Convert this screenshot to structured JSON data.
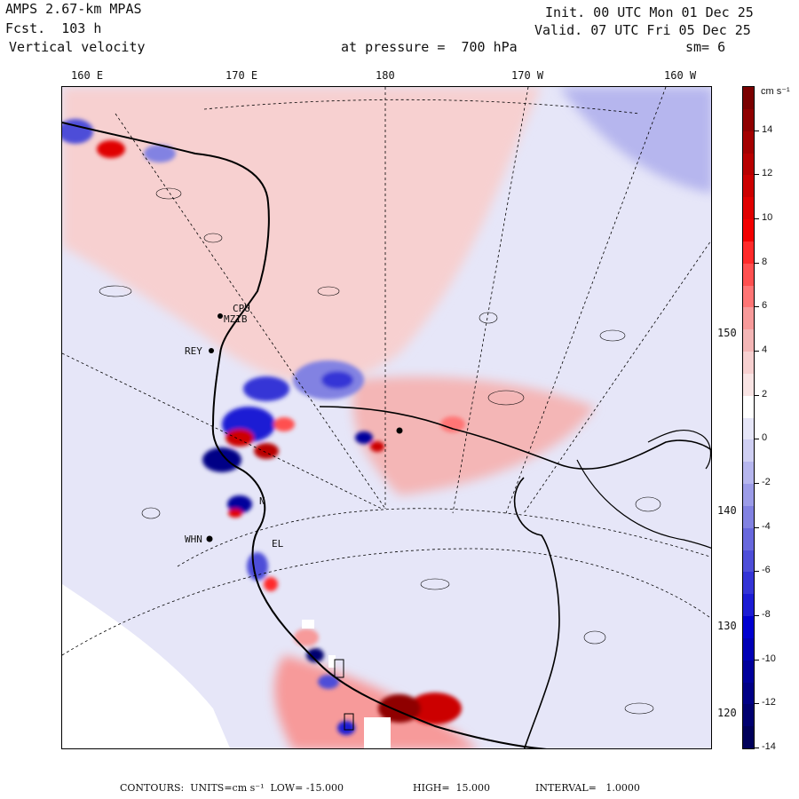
{
  "header": {
    "model": "AMPS 2.67-km MPAS",
    "forecast": "Fcst.  103 h",
    "field": "Vertical velocity",
    "init": "Init. 00 UTC Mon 01 Dec 25",
    "valid": "Valid. 07 UTC Fri 05 Dec 25",
    "level": "at pressure =  700 hPa",
    "smoothing": "sm= 6"
  },
  "top_ticks": [
    "160 E",
    "170 E",
    "180",
    "170 W",
    "160 W"
  ],
  "right_ticks": [
    "150 W",
    "140 W",
    "130 W",
    "120 W"
  ],
  "stations": [
    {
      "id": "st-mcm",
      "label": "MZIB"
    },
    {
      "id": "st-cpu",
      "label": "CPU"
    },
    {
      "id": "st-rey",
      "label": "REY"
    },
    {
      "id": "st-whn",
      "label": "WHN"
    },
    {
      "id": "st-n",
      "label": "N"
    },
    {
      "id": "st-el",
      "label": "EL"
    }
  ],
  "colorbar": {
    "units": "cm s⁻¹",
    "labels": [
      "14",
      "12",
      "10",
      "8",
      "6",
      "4",
      "2",
      "0",
      "-2",
      "-4",
      "-6",
      "-8",
      "-10",
      "-12",
      "-14"
    ],
    "colors": [
      "#7a0000",
      "#8f0000",
      "#a40000",
      "#b80000",
      "#cc0000",
      "#e00000",
      "#f20000",
      "#ff2a2a",
      "#ff5050",
      "#ff7575",
      "#f79a9a",
      "#f4b6b6",
      "#f7d0d0",
      "#f9e4e4",
      "#ffffff",
      "#e6e6f8",
      "#cfcff3",
      "#b6b6ee",
      "#9c9ce8",
      "#8282e2",
      "#6868dd",
      "#4e4ed8",
      "#3434d6",
      "#1c1cd4",
      "#0000d0",
      "#0000b6",
      "#00009c",
      "#000086",
      "#000070",
      "#00005a"
    ]
  },
  "footer": {
    "contours": "CONTOURS:  UNITS=cm s⁻¹  LOW= -15.000",
    "high": "HIGH=  15.000",
    "interval": "INTERVAL=   1.0000"
  }
}
